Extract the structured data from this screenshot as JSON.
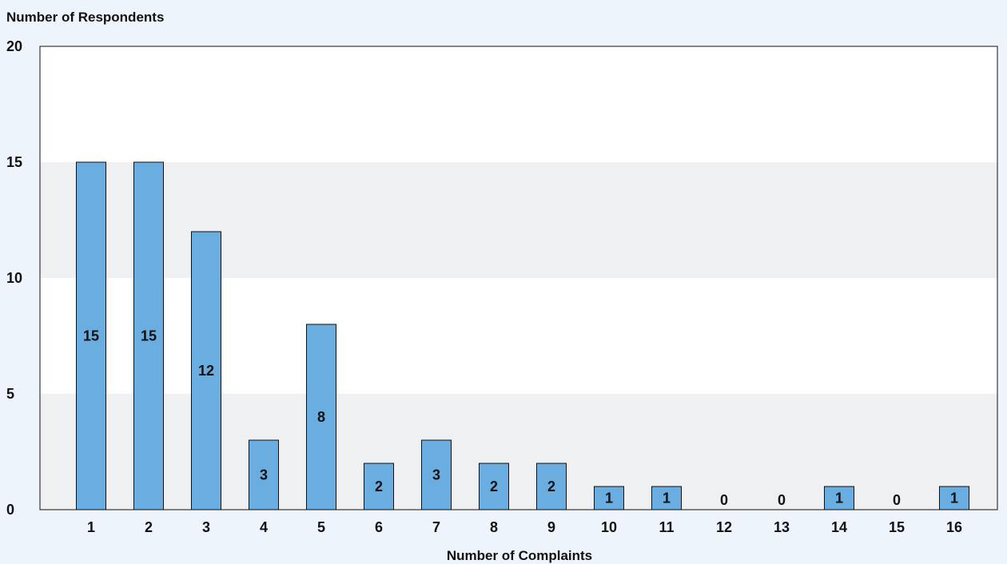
{
  "chart_data": {
    "type": "bar",
    "ylabel": "Number of Respondents",
    "xlabel": "Number of Complaints",
    "categories": [
      "1",
      "2",
      "3",
      "4",
      "5",
      "6",
      "7",
      "8",
      "9",
      "10",
      "11",
      "12",
      "13",
      "14",
      "15",
      "16"
    ],
    "values": [
      15,
      15,
      12,
      3,
      8,
      2,
      3,
      2,
      2,
      1,
      1,
      0,
      0,
      1,
      0,
      1
    ],
    "ylim": [
      0,
      20
    ],
    "yticks": [
      0,
      5,
      10,
      15,
      20
    ],
    "grid": "alternating horizontal bands",
    "colors": {
      "bar": "#6aade0",
      "bar_outline": "#111111",
      "band": "#eff0f2",
      "plot_background": "#ffffff",
      "page_background": "#eef4fb"
    }
  }
}
